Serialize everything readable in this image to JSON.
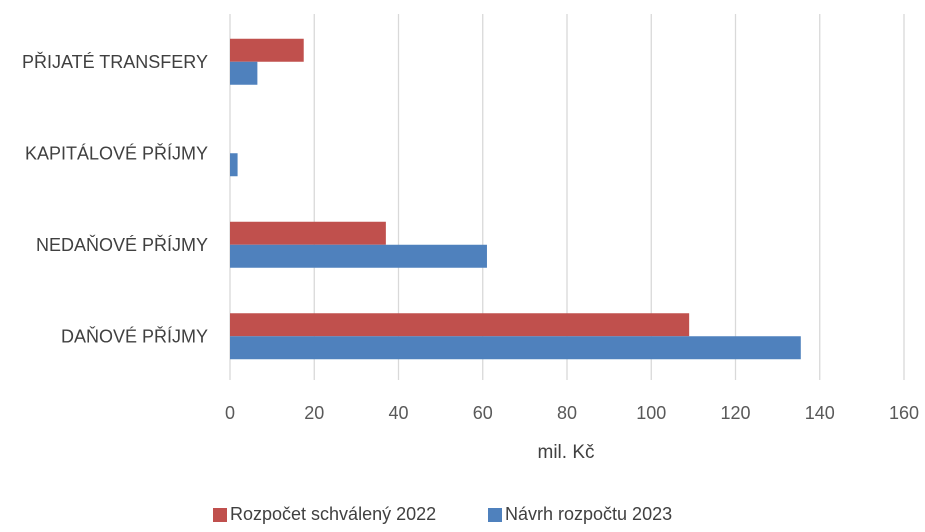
{
  "chart_data": {
    "type": "bar",
    "orientation": "horizontal",
    "categories": [
      "PŘIJATÉ TRANSFERY",
      "KAPITÁLOVÉ PŘÍJMY",
      "NEDAŇOVÉ PŘÍJMY",
      "DAŇOVÉ PŘÍJMY"
    ],
    "series": [
      {
        "name": "Rozpočet schválený 2022",
        "color": "#c0504d",
        "values": [
          17.5,
          0,
          37,
          109
        ]
      },
      {
        "name": "Návrh rozpočtu 2023",
        "color": "#4f81bd",
        "values": [
          6.5,
          1.8,
          61,
          135.5
        ]
      }
    ],
    "xlabel": "mil. Kč",
    "ylabel": "",
    "xlim": [
      0,
      160
    ],
    "xticks": [
      0,
      20,
      40,
      60,
      80,
      100,
      120,
      140,
      160
    ],
    "grid": "vertical",
    "legend_position": "bottom"
  }
}
